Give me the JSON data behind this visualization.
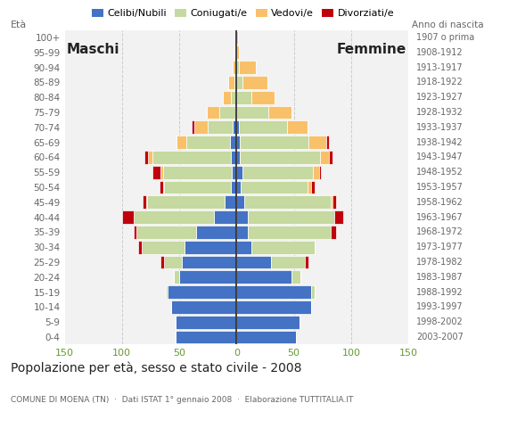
{
  "age_groups_bottom_to_top": [
    "0-4",
    "5-9",
    "10-14",
    "15-19",
    "20-24",
    "25-29",
    "30-34",
    "35-39",
    "40-44",
    "45-49",
    "50-54",
    "55-59",
    "60-64",
    "65-69",
    "70-74",
    "75-79",
    "80-84",
    "85-89",
    "90-94",
    "95-99",
    "100+"
  ],
  "birth_years_bottom_to_top": [
    "2003-2007",
    "1998-2002",
    "1993-1997",
    "1988-1992",
    "1983-1987",
    "1978-1982",
    "1973-1977",
    "1968-1972",
    "1963-1967",
    "1958-1962",
    "1953-1957",
    "1948-1952",
    "1943-1947",
    "1938-1942",
    "1933-1937",
    "1928-1932",
    "1923-1927",
    "1918-1922",
    "1913-1917",
    "1908-1912",
    "1907 o prima"
  ],
  "colors": {
    "celibe": "#4472C4",
    "coniugato": "#C5D9A0",
    "vedovo": "#F9C06A",
    "divorziato": "#C0000C"
  },
  "males_bottom_to_top": {
    "celibe": [
      53,
      53,
      57,
      60,
      50,
      48,
      45,
      35,
      20,
      10,
      5,
      4,
      5,
      6,
      3,
      1,
      0,
      0,
      0,
      0,
      0
    ],
    "coniugato": [
      0,
      0,
      0,
      2,
      5,
      15,
      38,
      52,
      70,
      68,
      58,
      60,
      68,
      38,
      22,
      14,
      5,
      2,
      1,
      0,
      0
    ],
    "vedovo": [
      0,
      0,
      0,
      0,
      0,
      0,
      0,
      0,
      0,
      1,
      1,
      2,
      4,
      8,
      12,
      11,
      7,
      5,
      2,
      1,
      0
    ],
    "divorziato": [
      0,
      0,
      0,
      0,
      0,
      3,
      3,
      3,
      10,
      3,
      3,
      7,
      3,
      0,
      2,
      0,
      0,
      0,
      0,
      0,
      0
    ]
  },
  "females_bottom_to_top": {
    "celibe": [
      52,
      55,
      65,
      65,
      48,
      30,
      13,
      10,
      10,
      7,
      4,
      5,
      3,
      3,
      2,
      0,
      0,
      0,
      0,
      0,
      0
    ],
    "coniugato": [
      0,
      0,
      0,
      3,
      8,
      30,
      55,
      72,
      75,
      75,
      58,
      62,
      70,
      60,
      42,
      28,
      13,
      5,
      2,
      0,
      0
    ],
    "vedovo": [
      0,
      0,
      0,
      0,
      0,
      0,
      0,
      0,
      0,
      2,
      3,
      5,
      8,
      15,
      18,
      20,
      20,
      22,
      15,
      2,
      1
    ],
    "divorziato": [
      0,
      0,
      0,
      0,
      0,
      3,
      0,
      5,
      8,
      3,
      3,
      2,
      3,
      3,
      0,
      0,
      0,
      0,
      0,
      0,
      0
    ]
  },
  "xlim": 150,
  "title": "Popolazione per età, sesso e stato civile - 2008",
  "subtitle": "COMUNE DI MOENA (TN)  ·  Dati ISTAT 1° gennaio 2008  ·  Elaborazione TUTTITALIA.IT",
  "label_maschi": "Maschi",
  "label_femmine": "Femmine",
  "legend_labels": [
    "Celibi/Nubili",
    "Coniugati/e",
    "Vedovi/e",
    "Divorziati/e"
  ],
  "bg_color": "#FFFFFF",
  "plot_bg": "#F2F2F2",
  "grid_color": "#CCCCCC",
  "text_color": "#666666",
  "axis_label_color": "#669933",
  "title_color": "#222222"
}
